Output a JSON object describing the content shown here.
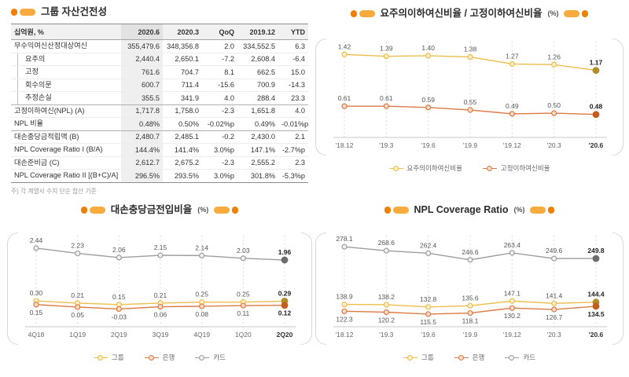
{
  "colors": {
    "accent_dark": "#ee7f01",
    "accent_light": "#f6ab3c",
    "series_yellow": "#eebd4a",
    "series_orange": "#dd7a42",
    "series_gray": "#9d9d9d"
  },
  "table_panel": {
    "title": "그룹 자산건전성",
    "unit_header": "십억원, %",
    "columns": [
      "2020.6",
      "2020.3",
      "QoQ",
      "2019.12",
      "YTD"
    ],
    "rows": [
      {
        "label": "무수익여신산정대상여신",
        "type": "normal",
        "values": [
          "355,479.6",
          "348,356.8",
          "2.0",
          "334,552.5",
          "6.3"
        ]
      },
      {
        "label": "요주의",
        "type": "sub",
        "values": [
          "2,440.4",
          "2,650.1",
          "-7.2",
          "2,608.4",
          "-6.4"
        ]
      },
      {
        "label": "고정",
        "type": "sub",
        "values": [
          "761.6",
          "704.7",
          "8.1",
          "662.5",
          "15.0"
        ]
      },
      {
        "label": "회수의문",
        "type": "sub",
        "values": [
          "600.7",
          "711.4",
          "-15.6",
          "700.9",
          "-14.3"
        ]
      },
      {
        "label": "추정손실",
        "type": "sub",
        "section_end": true,
        "values": [
          "355.5",
          "341.9",
          "4.0",
          "288.4",
          "23.3"
        ]
      },
      {
        "label": "고정이하여신(NPL) (A)",
        "type": "normal",
        "values": [
          "1,717.8",
          "1,758.0",
          "-2.3",
          "1,651.8",
          "4.0"
        ]
      },
      {
        "label": "NPL 비율",
        "type": "normal",
        "section_end": true,
        "values": [
          "0.48%",
          "0.50%",
          "-0.02%p",
          "0.49%",
          "-0.01%p"
        ]
      },
      {
        "label": "대손충당금적립액 (B)",
        "type": "normal",
        "values": [
          "2,480.7",
          "2,485.1",
          "-0.2",
          "2,430.0",
          "2.1"
        ]
      },
      {
        "label": "NPL Coverage Ratio I (B/A)",
        "type": "normal",
        "values": [
          "144.4%",
          "141.4%",
          "3.0%p",
          "147.1%",
          "-2.7%p"
        ]
      },
      {
        "label": "대손준비금 (C)",
        "type": "normal",
        "values": [
          "2,612.7",
          "2,675.2",
          "-2.3",
          "2,555.2",
          "2.3"
        ]
      },
      {
        "label": "NPL Coverage Ratio II [(B+C)/A]",
        "type": "normal",
        "section_end": true,
        "values": [
          "296.5%",
          "293.5%",
          "3.0%p",
          "301.8%",
          "-5.3%p"
        ]
      }
    ],
    "footnote": "주) 각 계열사 수치 단순 합산 기준"
  },
  "chart_data": [
    {
      "id": "loan-quality-ratios",
      "type": "line",
      "title": "요주의이하여신비율 / 고정이하여신비율",
      "title_unit": "(%)",
      "categories": [
        "'18.12",
        "'19.3",
        "'19.6",
        "'19.9",
        "'19.12",
        "'20.3",
        "'20.6"
      ],
      "series": [
        {
          "name": "요주의이하여신비율",
          "color": "#eebd4a",
          "fill": "#fcefcd",
          "color_last": "#b08d2a",
          "label_pos": "above",
          "values": [
            1.42,
            1.39,
            1.4,
            1.38,
            1.27,
            1.26,
            1.17
          ]
        },
        {
          "name": "고정이하여신비율",
          "color": "#dd7a42",
          "fill": "#f9ddc9",
          "color_last": "#c25d20",
          "label_pos": "above",
          "values": [
            0.61,
            0.61,
            0.59,
            0.55,
            0.49,
            0.5,
            0.48
          ]
        }
      ],
      "ylim": [
        0.12,
        1.62
      ],
      "value_decimals": 2,
      "grid": "dashed-vertical-per-category",
      "legend_position": "bottom"
    },
    {
      "id": "credit-cost-ratio",
      "type": "line",
      "title": "대손충당금전입비율",
      "title_unit": "(%)",
      "categories": [
        "4Q18",
        "1Q19",
        "2Q19",
        "3Q19",
        "4Q19",
        "1Q20",
        "2Q20"
      ],
      "series": [
        {
          "name": "그룹",
          "color": "#eebd4a",
          "fill": "#fcefcd",
          "color_last": "#b08d2a",
          "label_pos": "above",
          "values": [
            0.3,
            0.21,
            0.15,
            0.21,
            0.25,
            0.25,
            0.29
          ]
        },
        {
          "name": "은행",
          "color": "#dd7a42",
          "fill": "#f9ddc9",
          "color_last": "#c25d20",
          "label_pos": "below",
          "values": [
            0.15,
            0.05,
            -0.03,
            0.06,
            0.08,
            0.11,
            0.12
          ]
        },
        {
          "name": "카드",
          "color": "#9d9d9d",
          "fill": "#f1f1f1",
          "color_last": "#6d6d6d",
          "label_pos": "above",
          "values": [
            2.44,
            2.23,
            2.06,
            2.15,
            2.14,
            2.03,
            1.96
          ]
        }
      ],
      "ylim": [
        -0.75,
        2.95
      ],
      "value_decimals": 2,
      "grid": "dashed-vertical-per-category",
      "legend_position": "bottom"
    },
    {
      "id": "npl-coverage-ratio",
      "type": "line",
      "title": "NPL Coverage Ratio",
      "title_unit": "(%)",
      "categories": [
        "'18.12",
        "'19.3",
        "'19.6",
        "'19.9",
        "'19.12",
        "'20.3",
        "'20.6"
      ],
      "series": [
        {
          "name": "그룹",
          "color": "#eebd4a",
          "fill": "#fcefcd",
          "color_last": "#b08d2a",
          "label_pos": "above",
          "values": [
            138.9,
            138.2,
            132.8,
            135.6,
            147.1,
            141.4,
            144.4
          ]
        },
        {
          "name": "은행",
          "color": "#dd7a42",
          "fill": "#f9ddc9",
          "color_last": "#c25d20",
          "label_pos": "below",
          "values": [
            122.3,
            120.2,
            115.5,
            118.1,
            130.2,
            126.7,
            134.5
          ]
        },
        {
          "name": "카드",
          "color": "#9d9d9d",
          "fill": "#f1f1f1",
          "color_last": "#6d6d6d",
          "label_pos": "above",
          "values": [
            278.1,
            268.6,
            262.4,
            246.6,
            263.4,
            249.6,
            249.8
          ]
        }
      ],
      "ylim": [
        85,
        305
      ],
      "value_decimals": 1,
      "grid": "dashed-vertical-per-category",
      "legend_position": "bottom"
    }
  ]
}
